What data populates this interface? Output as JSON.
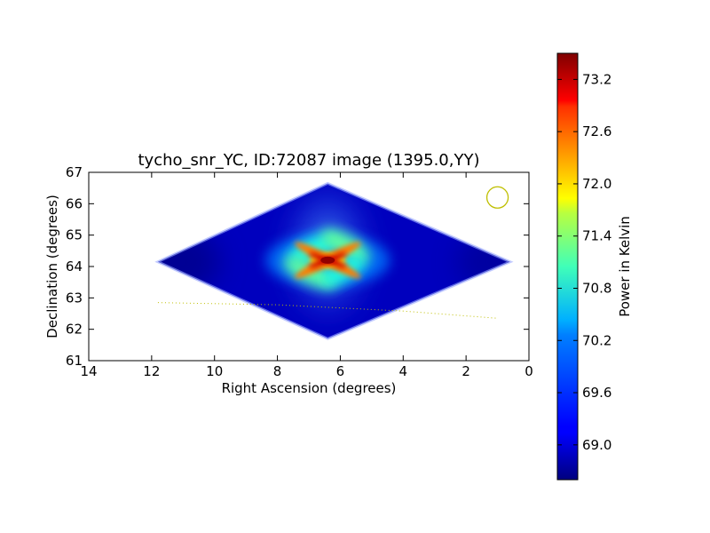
{
  "chart_data": {
    "type": "heatmap",
    "title": "tycho_snr_YC, ID:72087 image (1395.0,YY)",
    "xlabel": "Right Ascension (degrees)",
    "ylabel": "Declination (degrees)",
    "xlim": [
      14,
      0
    ],
    "ylim": [
      61,
      67
    ],
    "xticks": [
      14,
      12,
      10,
      8,
      6,
      4,
      2,
      0
    ],
    "yticks": [
      61,
      62,
      63,
      64,
      65,
      66,
      67
    ],
    "grid": false,
    "colormap": "jet",
    "colorbar": {
      "label": "Power in Kelvin",
      "range": [
        68.6,
        73.5
      ],
      "ticks": [
        69.0,
        69.6,
        70.2,
        70.8,
        71.4,
        72.0,
        72.6,
        73.2
      ],
      "tick_labels": [
        "69.0",
        "69.6",
        "70.2",
        "70.8",
        "71.4",
        "72.0",
        "72.6",
        "73.2"
      ]
    },
    "image_footprint": {
      "shape": "diamond",
      "vertices_ra_dec": [
        [
          11.8,
          64.15
        ],
        [
          6.4,
          66.65
        ],
        [
          0.6,
          64.15
        ],
        [
          6.4,
          61.7
        ]
      ],
      "background_level": 68.9,
      "left_tip_level": 68.7
    },
    "peak": {
      "ra": 6.4,
      "dec": 64.2,
      "value": 73.4
    },
    "beam_circle": {
      "ra": 1.0,
      "dec": 66.2,
      "color": "#bfbf00"
    },
    "track_line": {
      "style": "dotted",
      "color": "#bfbf00",
      "points": [
        [
          11.8,
          62.85
        ],
        [
          8.0,
          62.78
        ],
        [
          4.0,
          62.58
        ],
        [
          1.0,
          62.35
        ]
      ]
    }
  }
}
